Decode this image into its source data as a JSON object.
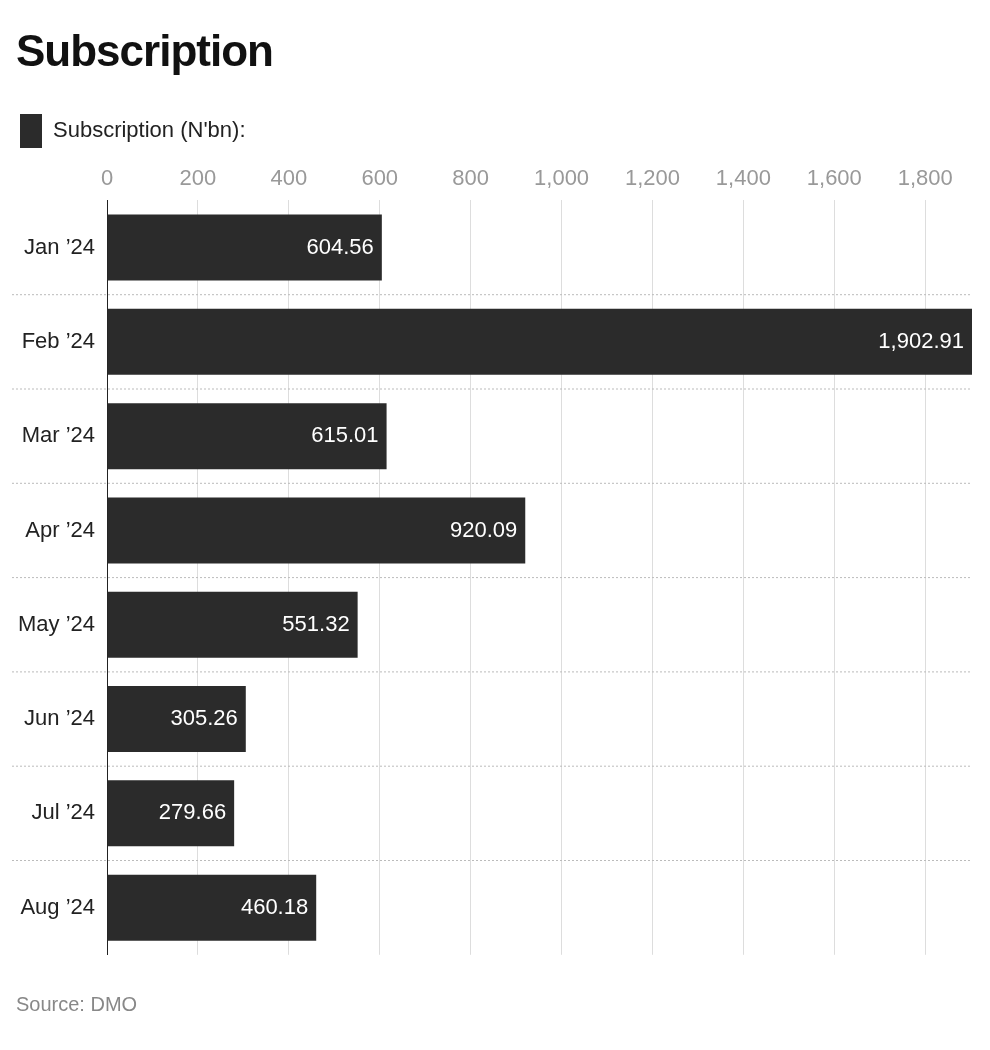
{
  "chart_data": {
    "type": "bar",
    "orientation": "horizontal",
    "title": "Subscription",
    "categories": [
      "Jan ’24",
      "Feb ’24",
      "Mar ’24",
      "Apr ’24",
      "May ’24",
      "Jun ’24",
      "Jul ’24",
      "Aug ’24"
    ],
    "series": [
      {
        "name": "Subscription (N'bn):",
        "color": "#2b2b2b",
        "values": [
          604.56,
          1902.91,
          615.01,
          920.09,
          551.32,
          305.26,
          279.66,
          460.18
        ],
        "value_labels": [
          "604.56",
          "1,902.91",
          "615.01",
          "920.09",
          "551.32",
          "305.26",
          "279.66",
          "460.18"
        ]
      }
    ],
    "xlim": [
      0,
      1902.91
    ],
    "xticks": [
      0,
      200,
      400,
      600,
      800,
      {
        "value": 1000,
        "label": "1,000"
      },
      {
        "value": 1200,
        "label": "1,200"
      },
      {
        "value": 1400,
        "label": "1,400"
      },
      {
        "value": 1600,
        "label": "1,600"
      },
      {
        "value": 1800,
        "label": "1,800"
      }
    ],
    "grid": "x",
    "legend": "top left",
    "annotations": [
      "Source: DMO"
    ]
  }
}
